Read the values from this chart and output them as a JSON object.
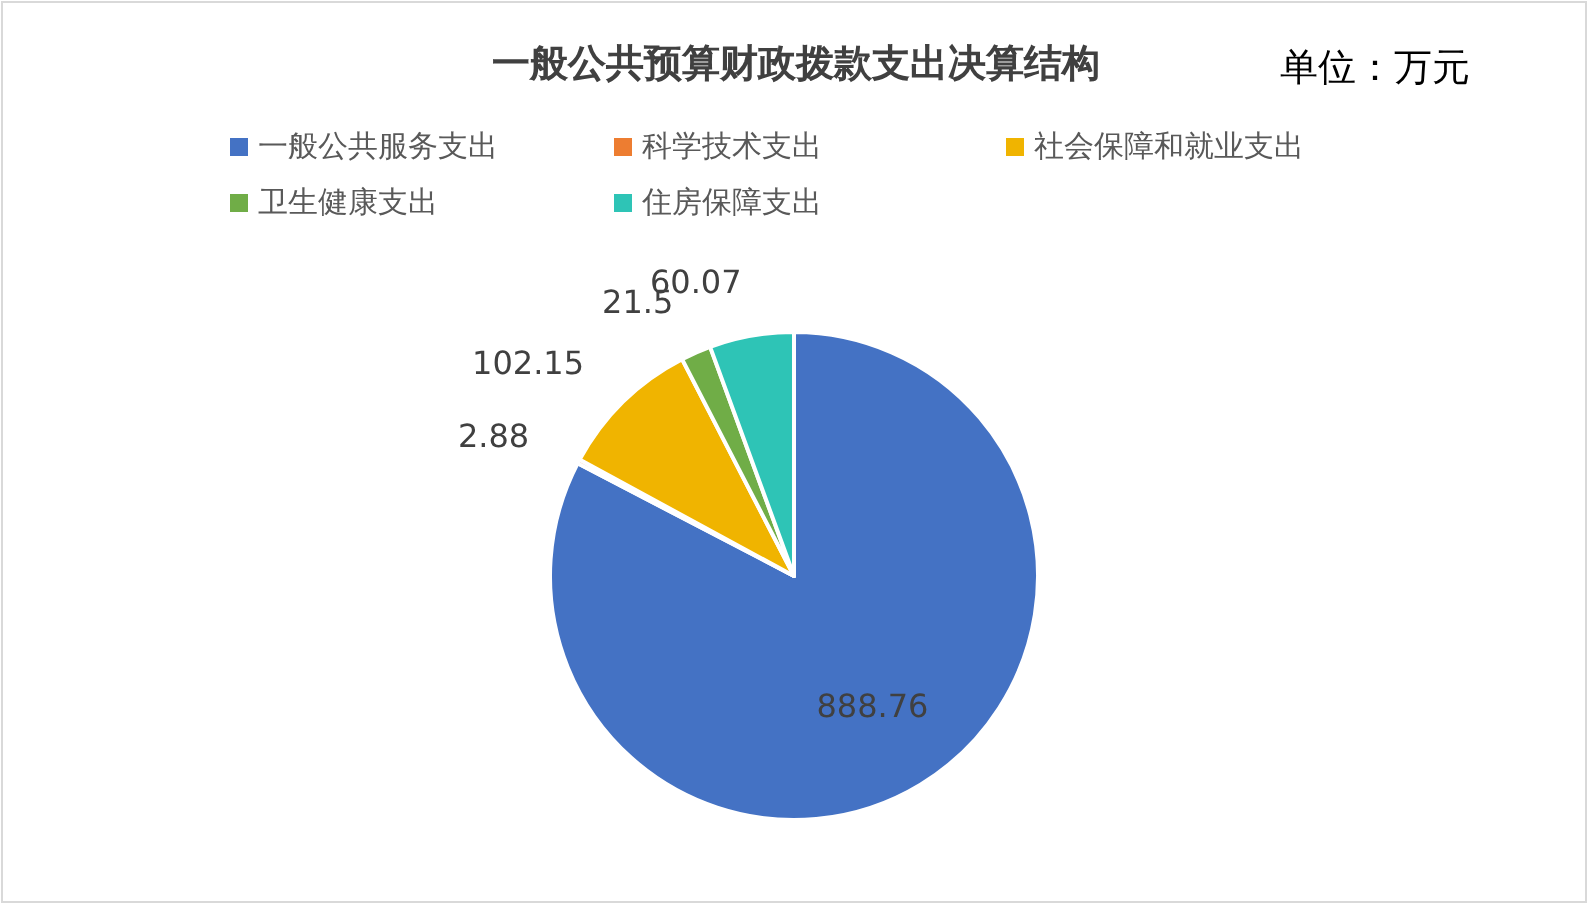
{
  "chart_data": {
    "type": "pie",
    "title": "一般公共预算财政拨款支出决算结构",
    "annotations": [
      "单位：万元"
    ],
    "categories": [
      "一般公共服务支出",
      "科学技术支出",
      "社会保障和就业支出",
      "卫生健康支出",
      "住房保障支出"
    ],
    "values": [
      888.76,
      2.88,
      102.15,
      21.5,
      60.07
    ],
    "colors": [
      "#4472c4",
      "#ed7d31",
      "#f0b400",
      "#70ad47",
      "#2ec4b6"
    ],
    "data_labels": true,
    "legend": "top"
  }
}
